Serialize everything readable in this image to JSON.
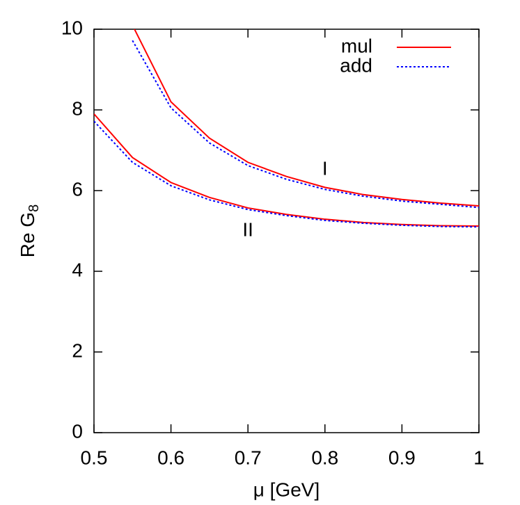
{
  "chart_data": {
    "type": "line",
    "xlabel": "μ [GeV]",
    "ylabel": "Re G",
    "ylabel_subscript": "8",
    "x": [
      0.5,
      0.55,
      0.6,
      0.65,
      0.7,
      0.75,
      0.8,
      0.85,
      0.9,
      0.95,
      1
    ],
    "curve_labels": [
      "I",
      "II"
    ],
    "series": [
      {
        "name": "mul",
        "color": "#ff0000",
        "dash": "solid",
        "values": [
          [
            null,
            10.1,
            8.2,
            7.3,
            6.7,
            6.35,
            6.08,
            5.9,
            5.78,
            5.69,
            5.62
          ],
          [
            7.9,
            6.82,
            6.2,
            5.83,
            5.57,
            5.41,
            5.29,
            5.21,
            5.16,
            5.13,
            5.12
          ]
        ]
      },
      {
        "name": "add",
        "color": "#0000ff",
        "dash": "dotted",
        "values": [
          [
            null,
            9.72,
            8.05,
            7.18,
            6.62,
            6.28,
            6.03,
            5.86,
            5.74,
            5.66,
            5.58
          ],
          [
            7.72,
            6.7,
            6.12,
            5.77,
            5.53,
            5.38,
            5.26,
            5.19,
            5.14,
            5.11,
            5.1
          ]
        ]
      }
    ],
    "xlim": [
      0.5,
      1
    ],
    "xticks": [
      0.5,
      0.6,
      0.7,
      0.8,
      0.9,
      1
    ],
    "ylim": [
      0,
      10
    ],
    "yticks": [
      0,
      2,
      4,
      6,
      8,
      10
    ],
    "legend": "top-right"
  }
}
